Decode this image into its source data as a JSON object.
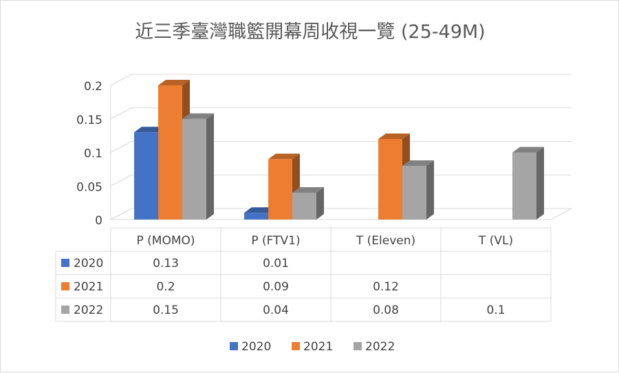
{
  "chart_data": {
    "type": "bar",
    "title": "近三季臺灣職籃開幕周收視一覽 (25-49M)",
    "categories": [
      "P (MOMO)",
      "P (FTV1)",
      "T (Eleven)",
      "T (VL)"
    ],
    "series": [
      {
        "name": "2020",
        "color": "#4472c4",
        "values": [
          0.13,
          0.01,
          null,
          null
        ]
      },
      {
        "name": "2021",
        "color": "#ed7d31",
        "values": [
          0.2,
          0.09,
          0.12,
          null
        ]
      },
      {
        "name": "2022",
        "color": "#a5a5a5",
        "values": [
          0.15,
          0.04,
          0.08,
          0.1
        ]
      }
    ],
    "y_ticks": [
      "0",
      "0.05",
      "0.1",
      "0.15",
      "0.2"
    ],
    "ylim": [
      0,
      0.2
    ],
    "grid": true,
    "legend": "bottom",
    "data_table": {
      "rows": [
        {
          "series": "2020",
          "cells": [
            "0.13",
            "0.01",
            "",
            ""
          ]
        },
        {
          "series": "2021",
          "cells": [
            "0.2",
            "0.09",
            "0.12",
            ""
          ]
        },
        {
          "series": "2022",
          "cells": [
            "0.15",
            "0.04",
            "0.08",
            "0.1"
          ]
        }
      ]
    }
  }
}
